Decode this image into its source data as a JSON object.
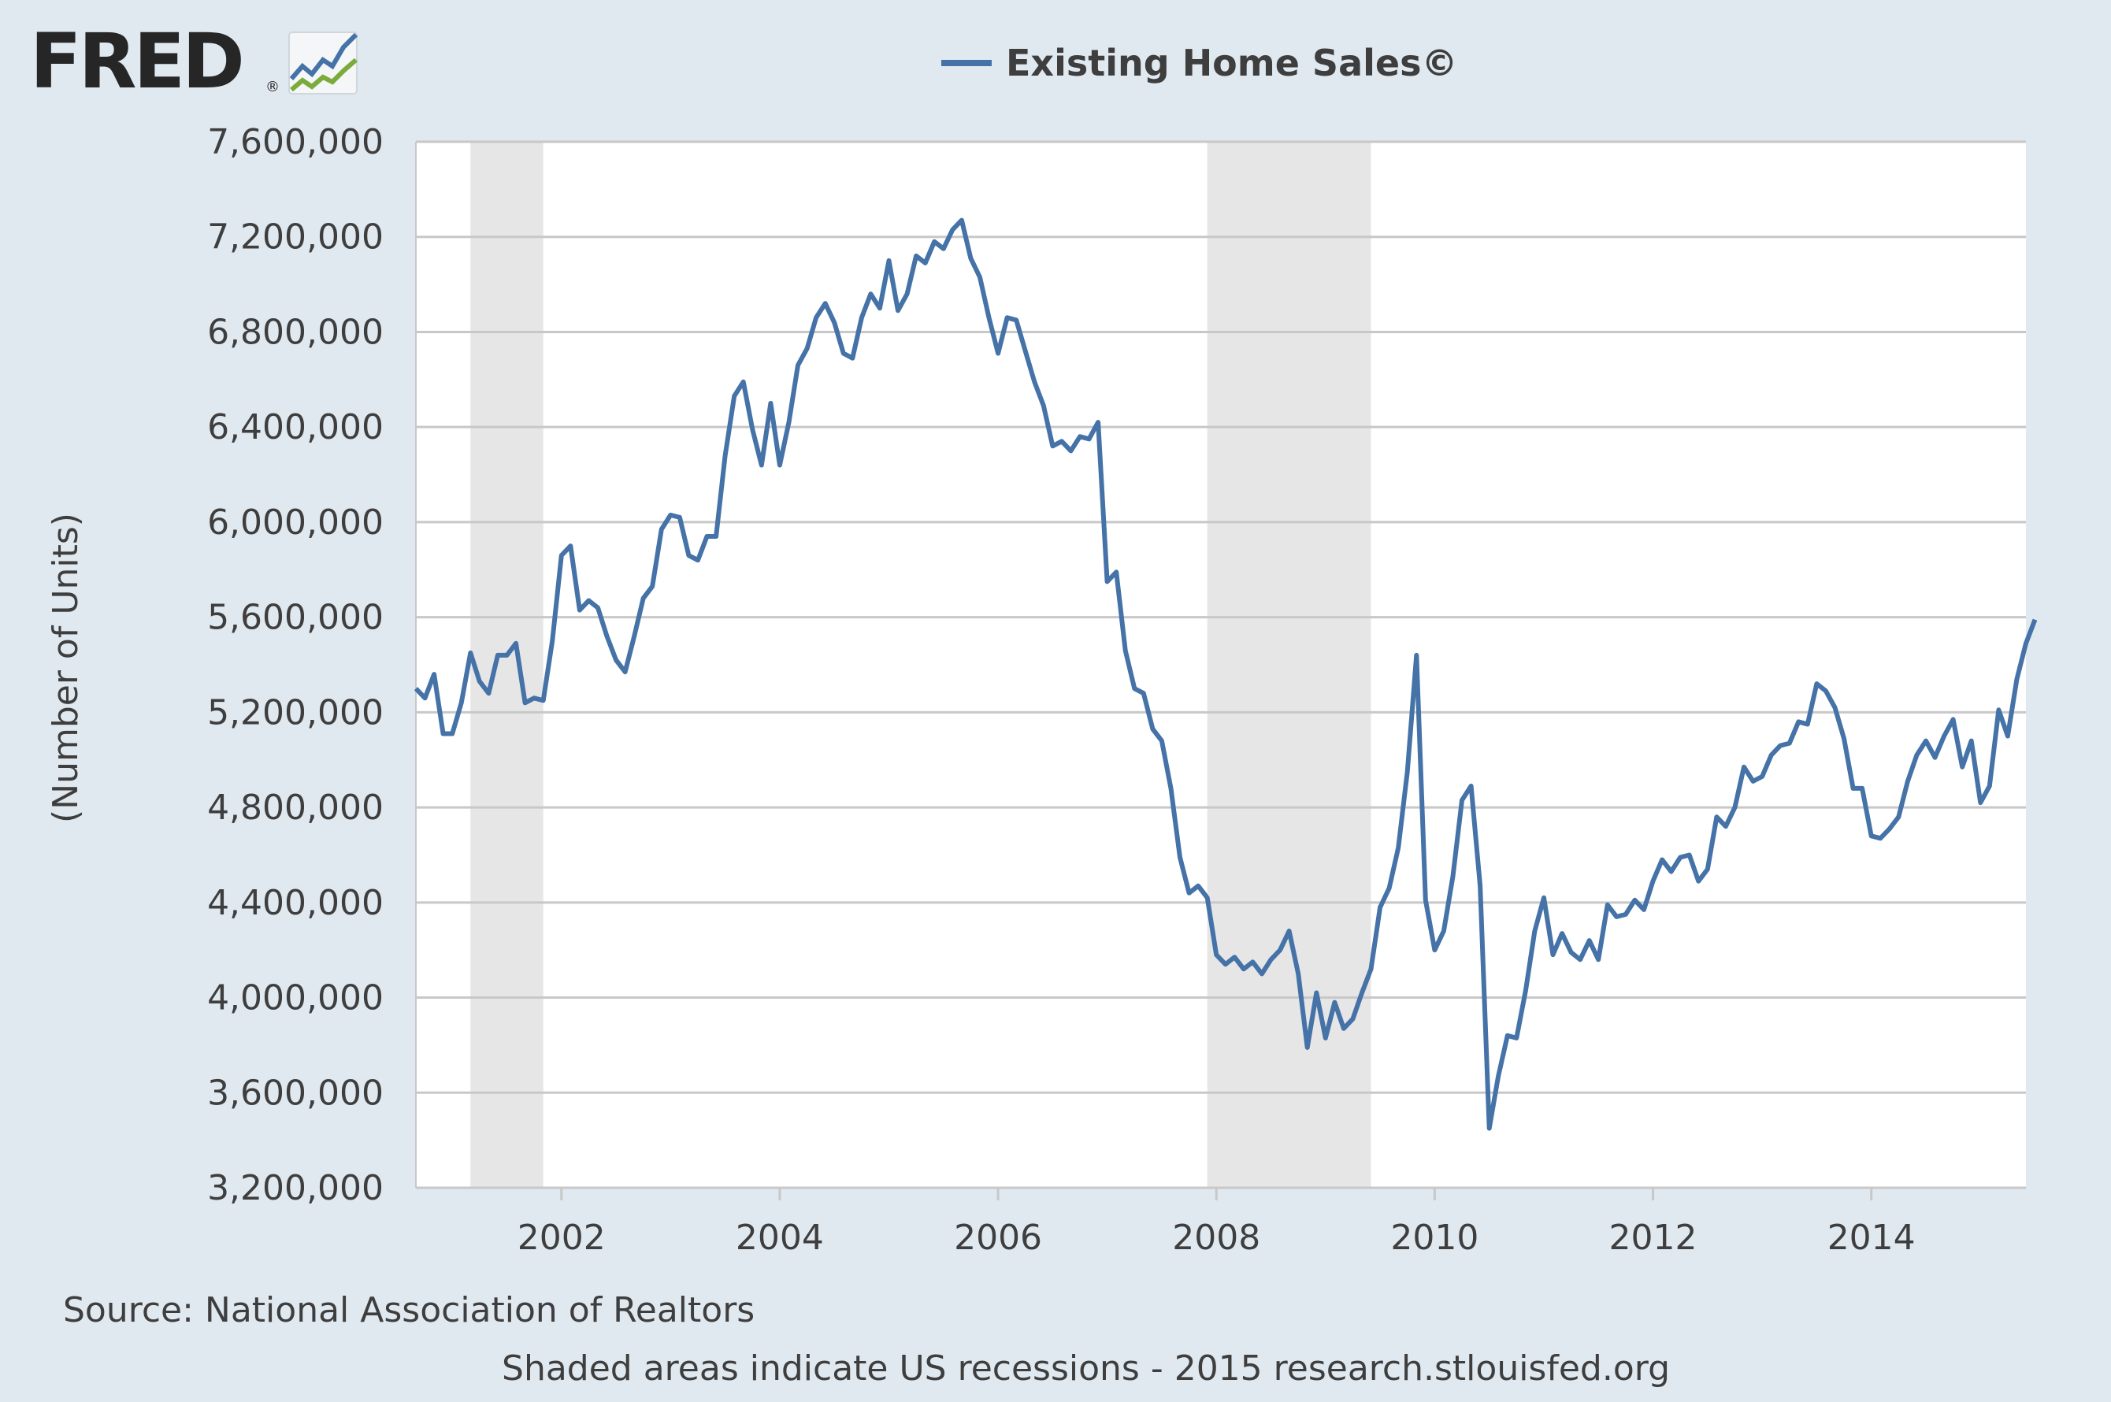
{
  "logo": {
    "text": "FRED",
    "mark": "®",
    "icon": "fred-chart-icon"
  },
  "chart_data": {
    "type": "line",
    "title": "",
    "xlabel": "",
    "ylabel": "(Number of Units)",
    "grid": true,
    "legend": "top-center",
    "series": [
      {
        "name": "Existing Home Sales©",
        "color": "#4572a7",
        "start": "2000-09",
        "frequency": "monthly",
        "values": [
          5300000,
          5260000,
          5360000,
          5110000,
          5110000,
          5240000,
          5450000,
          5330000,
          5280000,
          5440000,
          5440000,
          5490000,
          5240000,
          5260000,
          5250000,
          5500000,
          5860000,
          5900000,
          5630000,
          5670000,
          5640000,
          5520000,
          5420000,
          5370000,
          5520000,
          5680000,
          5730000,
          5970000,
          6030000,
          6020000,
          5860000,
          5840000,
          5940000,
          5940000,
          6280000,
          6530000,
          6590000,
          6390000,
          6240000,
          6500000,
          6240000,
          6420000,
          6660000,
          6730000,
          6860000,
          6920000,
          6840000,
          6710000,
          6690000,
          6860000,
          6960000,
          6900000,
          7100000,
          6890000,
          6960000,
          7120000,
          7090000,
          7180000,
          7150000,
          7230000,
          7270000,
          7110000,
          7030000,
          6860000,
          6710000,
          6860000,
          6850000,
          6720000,
          6590000,
          6490000,
          6320000,
          6340000,
          6300000,
          6360000,
          6350000,
          6420000,
          5750000,
          5790000,
          5460000,
          5300000,
          5280000,
          5130000,
          5080000,
          4880000,
          4590000,
          4440000,
          4470000,
          4420000,
          4180000,
          4140000,
          4170000,
          4120000,
          4150000,
          4100000,
          4160000,
          4200000,
          4280000,
          4100000,
          3790000,
          4020000,
          3830000,
          3980000,
          3870000,
          3910000,
          4020000,
          4120000,
          4380000,
          4460000,
          4630000,
          4950000,
          5440000,
          4410000,
          4200000,
          4280000,
          4510000,
          4830000,
          4890000,
          4470000,
          3450000,
          3670000,
          3840000,
          3830000,
          4030000,
          4280000,
          4420000,
          4180000,
          4270000,
          4190000,
          4160000,
          4240000,
          4160000,
          4390000,
          4340000,
          4350000,
          4410000,
          4370000,
          4490000,
          4580000,
          4530000,
          4590000,
          4600000,
          4490000,
          4540000,
          4760000,
          4720000,
          4800000,
          4970000,
          4910000,
          4930000,
          5020000,
          5060000,
          5070000,
          5160000,
          5150000,
          5320000,
          5290000,
          5220000,
          5090000,
          4880000,
          4880000,
          4680000,
          4670000,
          4710000,
          4760000,
          4910000,
          5020000,
          5080000,
          5010000,
          5100000,
          5170000,
          4970000,
          5080000,
          4820000,
          4890000,
          5210000,
          5100000,
          5340000,
          5490000,
          5590000
        ]
      }
    ],
    "y_ticks": [
      "3,200,000",
      "3,600,000",
      "4,000,000",
      "4,400,000",
      "4,800,000",
      "5,200,000",
      "5,600,000",
      "6,000,000",
      "6,400,000",
      "6,800,000",
      "7,200,000",
      "7,600,000"
    ],
    "y_tick_values": [
      3200000,
      3600000,
      4000000,
      4400000,
      4800000,
      5200000,
      5600000,
      6000000,
      6400000,
      6800000,
      7200000,
      7600000
    ],
    "x_ticks": [
      "2002",
      "2004",
      "2006",
      "2008",
      "2010",
      "2012",
      "2014"
    ],
    "xlim": [
      "2000-09",
      "2015-06"
    ],
    "ylim": [
      3200000,
      7600000
    ],
    "recessions": [
      [
        "2001-03",
        "2001-11"
      ],
      [
        "2007-12",
        "2009-06"
      ]
    ],
    "recession_color": "#e6e6e6",
    "grid_color": "#c8c8c8"
  },
  "source": "Source: National Association of Realtors",
  "footnote": "Shaded areas indicate US recessions - 2015 research.stlouisfed.org"
}
